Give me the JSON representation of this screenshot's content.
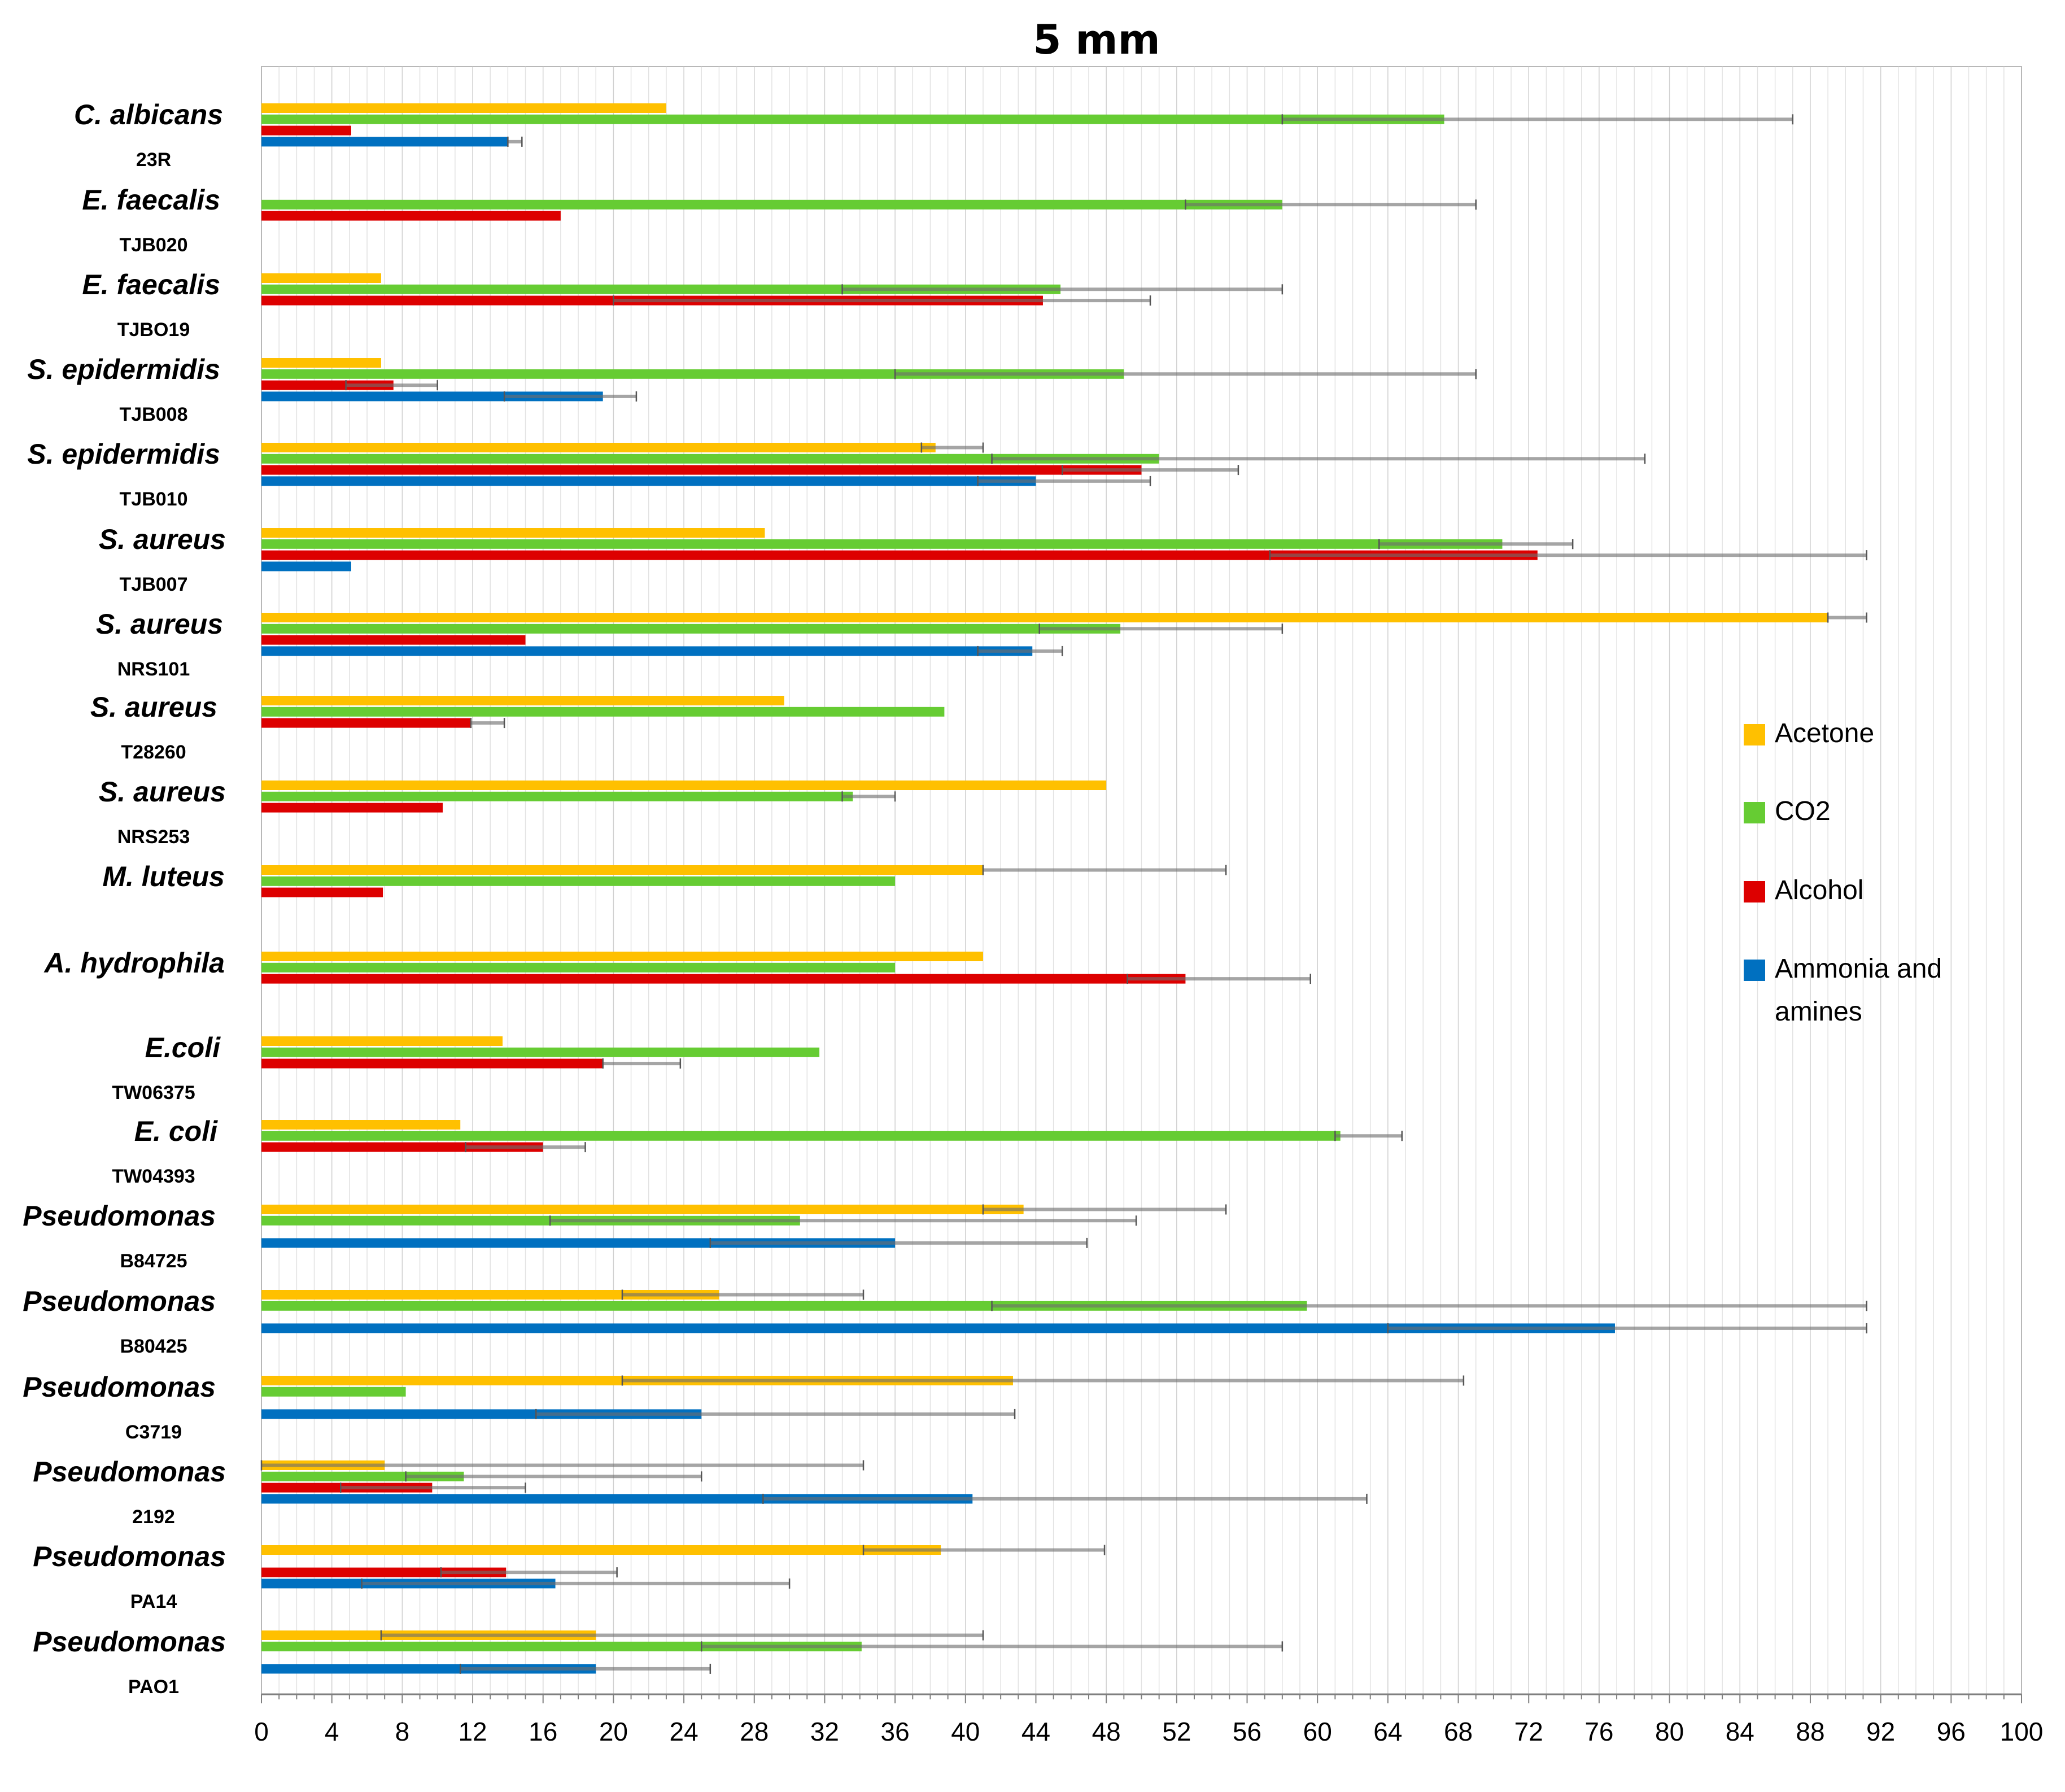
{
  "chart_data": {
    "type": "bar",
    "orientation": "horizontal",
    "title": "5 mm",
    "xlabel": "",
    "ylabel": "",
    "xlim": [
      0,
      100
    ],
    "xticks": [
      "0",
      "4",
      "8",
      "12",
      "16",
      "20",
      "24",
      "28",
      "32",
      "36",
      "40",
      "44",
      "48",
      "52",
      "56",
      "60",
      "64",
      "68",
      "72",
      "76",
      "80",
      "84",
      "88",
      "92",
      "96",
      "100"
    ],
    "grid": "vertical gridlines every 1 unit",
    "legend_position": "right",
    "series": [
      {
        "name": "Acetone",
        "color": "#FFC000"
      },
      {
        "name": "CO2",
        "color": "#66CC33"
      },
      {
        "name": "Alcohol",
        "color": "#DD0000"
      },
      {
        "name": "Ammonia and amines",
        "color": "#0070C0"
      }
    ],
    "legend": [
      {
        "label": "Acetone",
        "color": "#FFC000"
      },
      {
        "label": "CO2",
        "color": "#66CC33"
      },
      {
        "label": "Alcohol",
        "color": "#DD0000"
      },
      {
        "label": "Ammonia and",
        "label2": "amines",
        "color": "#0070C0"
      }
    ],
    "categories": [
      {
        "organism": "C. albicans",
        "strain": "23R",
        "bars": [
          {
            "series": "Acetone",
            "value": 23,
            "err": null
          },
          {
            "series": "CO2",
            "value": 67.2,
            "err": [
              58,
              87
            ]
          },
          {
            "series": "Alcohol",
            "value": 5.1,
            "err": null
          },
          {
            "series": "Ammonia and amines",
            "value": 14,
            "err": [
              14,
              14.8
            ]
          }
        ]
      },
      {
        "organism": "E. faecalis",
        "strain": "TJB020",
        "bars": [
          {
            "series": "CO2",
            "value": 58,
            "err": [
              52.5,
              69
            ]
          },
          {
            "series": "Alcohol",
            "value": 17,
            "err": null
          }
        ]
      },
      {
        "organism": "E. faecalis",
        "strain": "TJBO19",
        "bars": [
          {
            "series": "Acetone",
            "value": 6.8,
            "err": null
          },
          {
            "series": "CO2",
            "value": 45.4,
            "err": [
              33,
              58
            ]
          },
          {
            "series": "Alcohol",
            "value": 44.4,
            "err": [
              20,
              50.5
            ]
          }
        ]
      },
      {
        "organism": "S. epidermidis",
        "strain": "TJB008",
        "bars": [
          {
            "series": "Acetone",
            "value": 6.8,
            "err": null
          },
          {
            "series": "CO2",
            "value": 49,
            "err": [
              36,
              69
            ]
          },
          {
            "series": "Alcohol",
            "value": 7.5,
            "err": [
              4.8,
              10
            ]
          },
          {
            "series": "Ammonia and amines",
            "value": 19.4,
            "err": [
              13.8,
              21.3
            ]
          }
        ]
      },
      {
        "organism": "S. epidermidis",
        "strain": "TJB010",
        "bars": [
          {
            "series": "Acetone",
            "value": 38.3,
            "err": [
              37.5,
              41
            ]
          },
          {
            "series": "CO2",
            "value": 51,
            "err": [
              41.5,
              78.6
            ]
          },
          {
            "series": "Alcohol",
            "value": 50,
            "err": [
              45.5,
              55.5
            ]
          },
          {
            "series": "Ammonia and amines",
            "value": 44,
            "err": [
              40.7,
              50.5
            ]
          }
        ]
      },
      {
        "organism": "S. aureus",
        "strain": "TJB007",
        "bars": [
          {
            "series": "Acetone",
            "value": 28.6,
            "err": null
          },
          {
            "series": "CO2",
            "value": 70.5,
            "err": [
              63.5,
              74.5
            ]
          },
          {
            "series": "Alcohol",
            "value": 72.5,
            "err": [
              57.3,
              91.2
            ]
          },
          {
            "series": "Ammonia and amines",
            "value": 5.1,
            "err": null
          }
        ]
      },
      {
        "organism": "S. aureus",
        "strain": "NRS101",
        "bars": [
          {
            "series": "Acetone",
            "value": 89,
            "err": [
              89,
              91.2
            ]
          },
          {
            "series": "CO2",
            "value": 48.8,
            "err": [
              44.2,
              58
            ]
          },
          {
            "series": "Alcohol",
            "value": 15,
            "err": null
          },
          {
            "series": "Ammonia and amines",
            "value": 43.8,
            "err": [
              40.7,
              45.5
            ]
          }
        ]
      },
      {
        "organism": "S. aureus",
        "strain": "T28260",
        "bars": [
          {
            "series": "Acetone",
            "value": 29.7,
            "err": null
          },
          {
            "series": "CO2",
            "value": 38.8,
            "err": null
          },
          {
            "series": "Alcohol",
            "value": 11.9,
            "err": [
              11.9,
              13.8
            ]
          }
        ]
      },
      {
        "organism": "S. aureus",
        "strain": "NRS253",
        "bars": [
          {
            "series": "Acetone",
            "value": 48,
            "err": null
          },
          {
            "series": "CO2",
            "value": 33.6,
            "err": [
              33,
              36
            ]
          },
          {
            "series": "Alcohol",
            "value": 10.3,
            "err": null
          }
        ]
      },
      {
        "organism": "M. luteus",
        "strain": "",
        "bars": [
          {
            "series": "Acetone",
            "value": 41,
            "err": [
              41,
              54.8
            ]
          },
          {
            "series": "CO2",
            "value": 36,
            "err": null
          },
          {
            "series": "Alcohol",
            "value": 6.9,
            "err": null
          }
        ]
      },
      {
        "organism": "A. hydrophila",
        "strain": "",
        "bars": [
          {
            "series": "Acetone",
            "value": 41,
            "err": null
          },
          {
            "series": "CO2",
            "value": 36,
            "err": null
          },
          {
            "series": "Alcohol",
            "value": 52.5,
            "err": [
              49.2,
              59.6
            ]
          }
        ]
      },
      {
        "organism": "E.coli",
        "strain": "TW06375",
        "bars": [
          {
            "series": "Acetone",
            "value": 13.7,
            "err": null
          },
          {
            "series": "CO2",
            "value": 31.7,
            "err": null
          },
          {
            "series": "Alcohol",
            "value": 19.4,
            "err": [
              19.4,
              23.8
            ]
          }
        ]
      },
      {
        "organism": "E. coli",
        "strain": "TW04393",
        "bars": [
          {
            "series": "Acetone",
            "value": 11.3,
            "err": null
          },
          {
            "series": "CO2",
            "value": 61.3,
            "err": [
              61,
              64.8
            ]
          },
          {
            "series": "Alcohol",
            "value": 16,
            "err": [
              11.6,
              18.4
            ]
          }
        ]
      },
      {
        "organism": "Pseudomonas",
        "strain": "B84725",
        "bars": [
          {
            "series": "Acetone",
            "value": 43.3,
            "err": [
              41,
              54.8
            ]
          },
          {
            "series": "CO2",
            "value": 30.6,
            "err": [
              16.4,
              49.7
            ]
          },
          {
            "series": "Ammonia and amines",
            "value": 36,
            "err": [
              25.5,
              46.9
            ]
          }
        ]
      },
      {
        "organism": "Pseudomonas",
        "strain": "B80425",
        "bars": [
          {
            "series": "Acetone",
            "value": 26,
            "err": [
              20.5,
              34.2
            ]
          },
          {
            "series": "CO2",
            "value": 59.4,
            "err": [
              41.5,
              91.2
            ]
          },
          {
            "series": "Ammonia and amines",
            "value": 76.9,
            "err": [
              64,
              91.2
            ]
          }
        ]
      },
      {
        "organism": "Pseudomonas",
        "strain": "C3719",
        "bars": [
          {
            "series": "Acetone",
            "value": 42.7,
            "err": [
              20.5,
              68.3
            ]
          },
          {
            "series": "CO2",
            "value": 8.2,
            "err": null
          },
          {
            "series": "Ammonia and amines",
            "value": 25,
            "err": [
              15.6,
              42.8
            ]
          }
        ]
      },
      {
        "organism": "Pseudomonas",
        "strain": "2192",
        "bars": [
          {
            "series": "Acetone",
            "value": 7,
            "err": [
              0,
              34.2
            ]
          },
          {
            "series": "CO2",
            "value": 11.5,
            "err": [
              8.2,
              25
            ]
          },
          {
            "series": "Alcohol",
            "value": 9.7,
            "err": [
              4.5,
              15
            ]
          },
          {
            "series": "Ammonia and amines",
            "value": 40.4,
            "err": [
              28.5,
              62.8
            ]
          }
        ]
      },
      {
        "organism": "Pseudomonas",
        "strain": "PA14",
        "bars": [
          {
            "series": "Acetone",
            "value": 38.6,
            "err": [
              34.2,
              47.9
            ]
          },
          {
            "series": "Alcohol",
            "value": 13.9,
            "err": [
              10.2,
              20.2
            ]
          },
          {
            "series": "Ammonia and amines",
            "value": 16.7,
            "err": [
              5.7,
              30
            ]
          }
        ]
      },
      {
        "organism": "Pseudomonas",
        "strain": "PAO1",
        "bars": [
          {
            "series": "Acetone",
            "value": 19,
            "err": [
              6.8,
              41
            ]
          },
          {
            "series": "CO2",
            "value": 34.1,
            "err": [
              25,
              58
            ]
          },
          {
            "series": "Ammonia and amines",
            "value": 19,
            "err": [
              11.3,
              25.5
            ]
          }
        ]
      }
    ]
  }
}
